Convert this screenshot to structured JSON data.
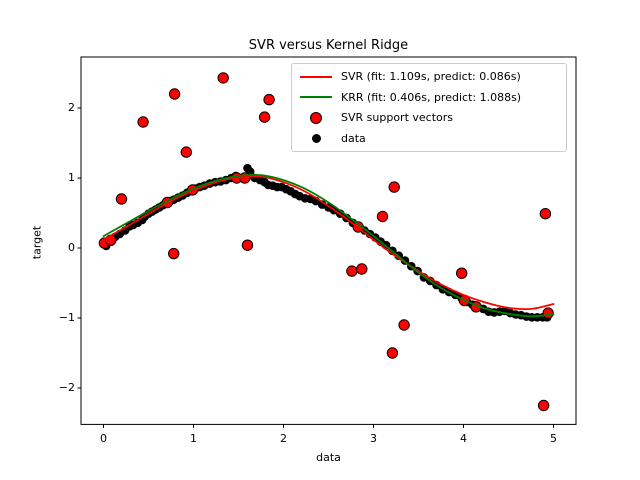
{
  "figure": {
    "background": "#ffffff"
  },
  "chart_data": {
    "type": "line+scatter",
    "title": "SVR versus Kernel Ridge",
    "xlabel": "data",
    "ylabel": "target",
    "xlim": [
      -0.25,
      5.25
    ],
    "ylim": [
      -2.52,
      2.729
    ],
    "grid": false,
    "xticks": {
      "values": [
        0,
        1,
        2,
        3,
        4,
        5
      ],
      "labels": [
        "0",
        "1",
        "2",
        "3",
        "4",
        "5"
      ]
    },
    "yticks": {
      "values": [
        -2,
        -1,
        0,
        1,
        2
      ],
      "labels": [
        "−2",
        "−1",
        "0",
        "1",
        "2"
      ]
    },
    "legend": {
      "position": "upper right",
      "border_color": "#cccccc"
    },
    "series": [
      {
        "name": "SVR (fit: 1.109s, predict: 0.086s)",
        "type": "line",
        "color": "#ff0000",
        "line_width": 1.8,
        "x": [
          0,
          0.25,
          0.5,
          0.75,
          1,
          1.25,
          1.5,
          1.75,
          2,
          2.25,
          2.5,
          2.75,
          3,
          3.25,
          3.5,
          3.75,
          4,
          4.25,
          4.5,
          4.75,
          5
        ],
        "y": [
          0.12,
          0.3,
          0.49,
          0.67,
          0.82,
          0.94,
          1.01,
          1.02,
          0.94,
          0.8,
          0.6,
          0.37,
          0.12,
          -0.12,
          -0.33,
          -0.52,
          -0.67,
          -0.78,
          -0.855,
          -0.87,
          -0.8
        ]
      },
      {
        "name": "KRR (fit: 0.406s, predict: 1.088s)",
        "type": "line",
        "color": "#008000",
        "line_width": 1.8,
        "x": [
          0,
          0.25,
          0.5,
          0.75,
          1,
          1.25,
          1.5,
          1.75,
          2,
          2.25,
          2.5,
          2.75,
          3,
          3.25,
          3.5,
          3.75,
          4,
          4.25,
          4.5,
          4.75,
          5
        ],
        "y": [
          0.17,
          0.35,
          0.53,
          0.7,
          0.85,
          0.96,
          1.03,
          1.04,
          0.97,
          0.84,
          0.65,
          0.42,
          0.17,
          -0.09,
          -0.35,
          -0.57,
          -0.74,
          -0.87,
          -0.94,
          -0.975,
          -0.95
        ]
      },
      {
        "name": "SVR support vectors",
        "type": "scatter",
        "face_color": "#ff0000",
        "edge_color": "#000000",
        "radius": 5.2,
        "points": [
          [
            0.01,
            0.07
          ],
          [
            0.08,
            0.11
          ],
          [
            0.2,
            0.7
          ],
          [
            0.44,
            1.8
          ],
          [
            0.71,
            0.65
          ],
          [
            0.79,
            2.2
          ],
          [
            0.78,
            -0.08
          ],
          [
            0.92,
            1.37
          ],
          [
            0.99,
            0.83
          ],
          [
            1.33,
            2.43
          ],
          [
            1.48,
            1.0
          ],
          [
            1.57,
            1.0
          ],
          [
            1.6,
            0.04
          ],
          [
            1.79,
            1.87
          ],
          [
            1.84,
            2.12
          ],
          [
            2.76,
            -0.33
          ],
          [
            2.83,
            0.3
          ],
          [
            2.87,
            -0.3
          ],
          [
            3.1,
            0.45
          ],
          [
            3.21,
            -1.5
          ],
          [
            3.23,
            0.87
          ],
          [
            3.34,
            -1.1
          ],
          [
            3.98,
            -0.36
          ],
          [
            4.01,
            -0.75
          ],
          [
            4.14,
            -0.84
          ],
          [
            4.89,
            -2.25
          ],
          [
            4.91,
            0.49
          ],
          [
            4.94,
            -0.93
          ]
        ]
      },
      {
        "name": "data",
        "type": "scatter",
        "face_color": "#000000",
        "edge_color": "#000000",
        "radius": 3.8,
        "points": [
          [
            0.03,
            0.03
          ],
          [
            0.08,
            0.09
          ],
          [
            0.13,
            0.16
          ],
          [
            0.18,
            0.2
          ],
          [
            0.24,
            0.25
          ],
          [
            0.29,
            0.31
          ],
          [
            0.33,
            0.33
          ],
          [
            0.38,
            0.36
          ],
          [
            0.43,
            0.4
          ],
          [
            0.46,
            0.45
          ],
          [
            0.5,
            0.49
          ],
          [
            0.54,
            0.52
          ],
          [
            0.58,
            0.55
          ],
          [
            0.62,
            0.58
          ],
          [
            0.66,
            0.61
          ],
          [
            0.7,
            0.64
          ],
          [
            0.74,
            0.67
          ],
          [
            0.78,
            0.69
          ],
          [
            0.83,
            0.72
          ],
          [
            0.88,
            0.75
          ],
          [
            0.93,
            0.79
          ],
          [
            0.98,
            0.82
          ],
          [
            1.02,
            0.85
          ],
          [
            1.07,
            0.87
          ],
          [
            1.12,
            0.89
          ],
          [
            1.18,
            0.92
          ],
          [
            1.24,
            0.94
          ],
          [
            1.3,
            0.95
          ],
          [
            1.36,
            0.97
          ],
          [
            1.42,
            1.0
          ],
          [
            1.47,
            1.03
          ],
          [
            1.52,
            1.0
          ],
          [
            1.57,
            1.01
          ],
          [
            1.6,
            1.14
          ],
          [
            1.63,
            1.09
          ],
          [
            1.68,
            1.0
          ],
          [
            1.74,
            0.97
          ],
          [
            1.79,
            0.94
          ],
          [
            1.83,
            0.9
          ],
          [
            1.88,
            0.89
          ],
          [
            1.93,
            0.87
          ],
          [
            1.98,
            0.87
          ],
          [
            2.03,
            0.84
          ],
          [
            2.08,
            0.81
          ],
          [
            2.13,
            0.77
          ],
          [
            2.18,
            0.74
          ],
          [
            2.24,
            0.71
          ],
          [
            2.3,
            0.7
          ],
          [
            2.36,
            0.67
          ],
          [
            2.43,
            0.62
          ],
          [
            2.5,
            0.58
          ],
          [
            2.56,
            0.54
          ],
          [
            2.63,
            0.49
          ],
          [
            2.7,
            0.43
          ],
          [
            2.77,
            0.36
          ],
          [
            2.83,
            0.3
          ],
          [
            2.9,
            0.25
          ],
          [
            2.96,
            0.2
          ],
          [
            3.02,
            0.15
          ],
          [
            3.08,
            0.09
          ],
          [
            3.14,
            0.04
          ],
          [
            3.21,
            -0.04
          ],
          [
            3.28,
            -0.11
          ],
          [
            3.35,
            -0.18
          ],
          [
            3.42,
            -0.26
          ],
          [
            3.49,
            -0.33
          ],
          [
            3.56,
            -0.42
          ],
          [
            3.63,
            -0.47
          ],
          [
            3.7,
            -0.53
          ],
          [
            3.77,
            -0.59
          ],
          [
            3.84,
            -0.63
          ],
          [
            3.91,
            -0.67
          ],
          [
            3.98,
            -0.72
          ],
          [
            4.04,
            -0.77
          ],
          [
            4.1,
            -0.81
          ],
          [
            4.16,
            -0.84
          ],
          [
            4.22,
            -0.87
          ],
          [
            4.28,
            -0.91
          ],
          [
            4.34,
            -0.92
          ],
          [
            4.4,
            -0.91
          ],
          [
            4.46,
            -0.9
          ],
          [
            4.52,
            -0.93
          ],
          [
            4.58,
            -0.95
          ],
          [
            4.64,
            -0.96
          ],
          [
            4.7,
            -0.98
          ],
          [
            4.76,
            -0.99
          ],
          [
            4.82,
            -0.99
          ],
          [
            4.88,
            -0.99
          ],
          [
            4.93,
            -0.99
          ]
        ]
      }
    ]
  }
}
